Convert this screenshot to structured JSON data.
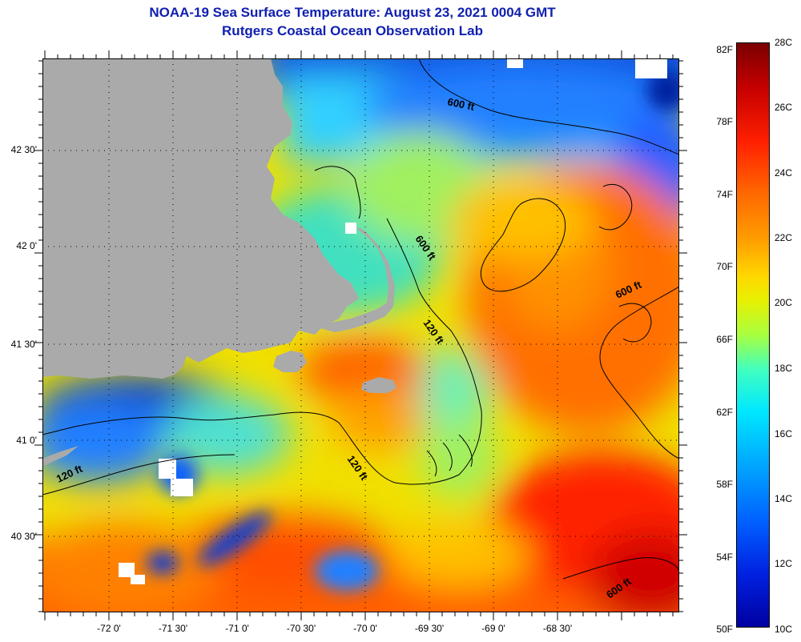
{
  "header": {
    "title": "NOAA-19 Sea Surface Temperature:  August 23, 2021 0004 GMT",
    "subtitle": "Rutgers Coastal Ocean Observation Lab"
  },
  "map": {
    "lat_labels": [
      "42 30'",
      "42 0'",
      "41 30'",
      "41 0'",
      "40 30'"
    ],
    "lon_labels": [
      "-72 0'",
      "-71 30'",
      "-71 0'",
      "-70 30'",
      "-70 0'",
      "-69 30'",
      "-69 0'",
      "-68 30'"
    ],
    "contour_labels": [
      "600 ft",
      "600 ft",
      "600 ft",
      "120 ft",
      "120 ft",
      "120 ft",
      "600 ft"
    ],
    "land_color": "#aaaaaa",
    "cloud_color": "#ffffff"
  },
  "colorbar": {
    "fahrenheit_labels": [
      "82F",
      "78F",
      "74F",
      "70F",
      "66F",
      "62F",
      "58F",
      "54F",
      "50F"
    ],
    "celsius_labels": [
      "28C",
      "26C",
      "24C",
      "22C",
      "20C",
      "18C",
      "16C",
      "14C",
      "12C",
      "10C"
    ],
    "colors": [
      "#7a0000",
      "#c80000",
      "#ff2000",
      "#ff6a00",
      "#ffa000",
      "#ffd800",
      "#e8f000",
      "#a8ff40",
      "#40ffc0",
      "#00e8ff",
      "#00a8ff",
      "#0060ff",
      "#0020e0",
      "#0000a0"
    ]
  }
}
